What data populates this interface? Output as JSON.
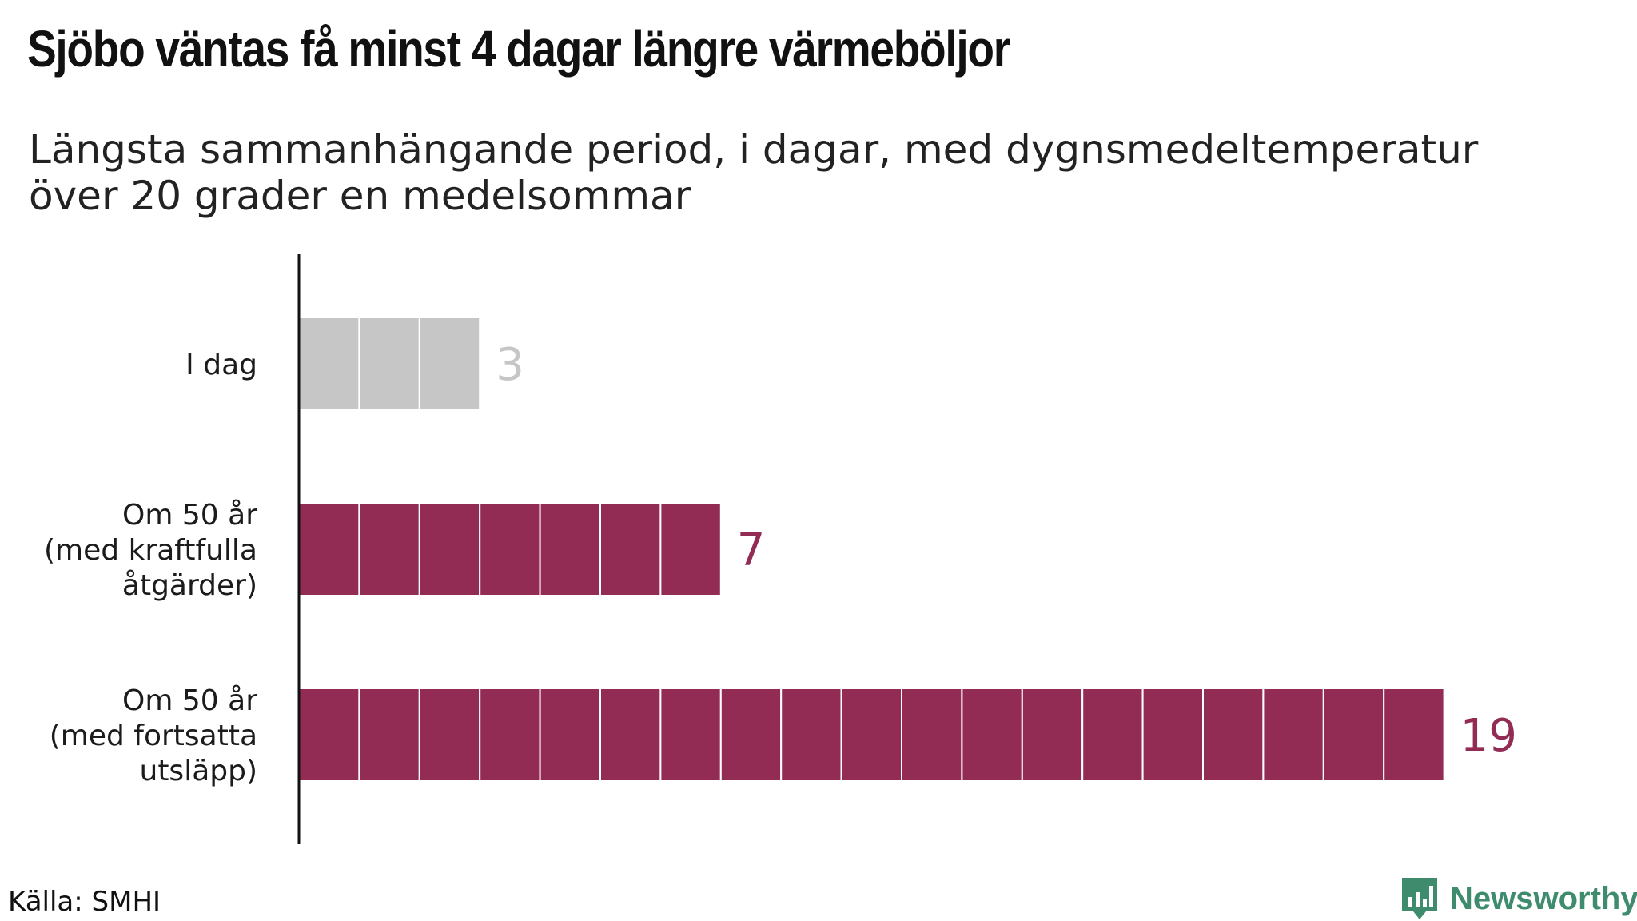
{
  "header": {
    "title": "Sjöbo väntas få minst 4 dagar längre värmeböljor",
    "subtitle_line1": "Längsta sammanhängande period, i dagar, med dygnsmedeltemperatur",
    "subtitle_line2": "över 20 grader en medelsommar"
  },
  "footer": {
    "source": "Källa: SMHI",
    "brand": "Newsworthy",
    "brand_icon": "bar-chart-speech-bubble-icon"
  },
  "colors": {
    "today": "#c6c6c6",
    "future": "#922c55",
    "brand": "#3f8b6e"
  },
  "chart_data": {
    "type": "bar",
    "orientation": "horizontal",
    "unit_segmented": true,
    "title": "Sjöbo väntas få minst 4 dagar längre värmeböljor",
    "subtitle": "Längsta sammanhängande period, i dagar, med dygnsmedeltemperatur över 20 grader en medelsommar",
    "categories": [
      [
        "I dag"
      ],
      [
        "Om 50 år",
        "(med kraftfulla",
        "åtgärder)"
      ],
      [
        "Om 50 år",
        "(med fortsatta",
        "utsläpp)"
      ]
    ],
    "values": [
      3,
      7,
      19
    ],
    "value_labels": [
      "3",
      "7",
      "19"
    ],
    "bar_colors": [
      "#c6c6c6",
      "#922c55",
      "#922c55"
    ],
    "label_colors": [
      "#c6c6c6",
      "#922c55",
      "#922c55"
    ],
    "xlim": [
      0,
      19
    ],
    "grid": false,
    "legend": "none"
  }
}
